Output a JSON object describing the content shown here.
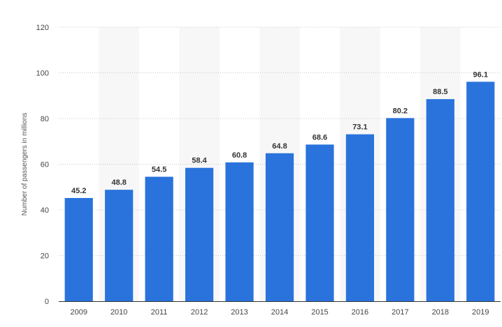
{
  "chart_data": {
    "type": "bar",
    "title": "",
    "xlabel": "",
    "ylabel": "Number of passengers in millions",
    "categories": [
      "2009",
      "2010",
      "2011",
      "2012",
      "2013",
      "2014",
      "2015",
      "2016",
      "2017",
      "2018",
      "2019"
    ],
    "values": [
      45.2,
      48.8,
      54.5,
      58.4,
      60.8,
      64.8,
      68.6,
      73.1,
      80.2,
      88.5,
      96.1
    ],
    "data_labels": [
      "45.2",
      "48.8",
      "54.5",
      "58.4",
      "60.8",
      "64.8",
      "68.6",
      "73.1",
      "80.2",
      "88.5",
      "96.1"
    ],
    "yticks": [
      "0",
      "20",
      "40",
      "60",
      "80",
      "100",
      "120"
    ],
    "ylim": [
      0,
      120
    ],
    "grid": true,
    "legend": "none",
    "colors": {
      "bar": "#2a73dc",
      "alt_band": "#f7f7f7",
      "grid": "#c8c8c8",
      "axis": "#333333"
    }
  }
}
